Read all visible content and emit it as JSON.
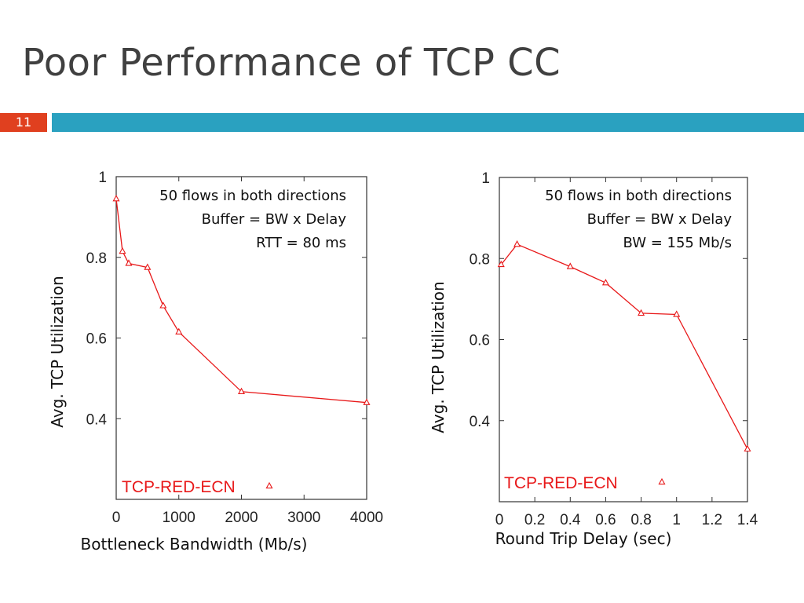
{
  "slide": {
    "title": "Poor Performance of TCP CC",
    "number": "11",
    "accent_color": "#e0401f",
    "bar_color": "#2aa1c0"
  },
  "chart_data": [
    {
      "type": "line",
      "title": "",
      "xlabel": "Bottleneck Bandwidth (Mb/s)",
      "ylabel": "Avg. TCP Utilization",
      "xlim": [
        0,
        4000
      ],
      "ylim": [
        0.2,
        1.0
      ],
      "xticks": [
        0,
        1000,
        2000,
        3000,
        4000
      ],
      "xtick_labels": [
        "0",
        "1000",
        "2000",
        "3000",
        "4000"
      ],
      "yticks": [
        0.4,
        0.6,
        0.8,
        1.0
      ],
      "ytick_labels": [
        "0.4",
        "0.6",
        "0.8",
        "1"
      ],
      "grid": false,
      "legend_position": "bottom-right",
      "annotations": [
        "50 flows in both directions",
        "Buffer = BW x Delay",
        "RTT = 80 ms"
      ],
      "series": [
        {
          "name": "TCP-RED-ECN",
          "color": "#e8191a",
          "marker": "triangle",
          "x": [
            0,
            100,
            200,
            500,
            750,
            1000,
            2000,
            4000
          ],
          "y": [
            0.945,
            0.815,
            0.785,
            0.775,
            0.68,
            0.615,
            0.467,
            0.44
          ]
        }
      ]
    },
    {
      "type": "line",
      "title": "",
      "xlabel": "Round Trip Delay (sec)",
      "ylabel": "Avg. TCP Utilization",
      "xlim": [
        0,
        1.4
      ],
      "ylim": [
        0.2,
        1.0
      ],
      "xticks": [
        0,
        0.2,
        0.4,
        0.6,
        0.8,
        1.0,
        1.2,
        1.4
      ],
      "xtick_labels": [
        "0",
        "0.2",
        "0.4",
        "0.6",
        "0.8",
        "1",
        "1.2",
        "1.4"
      ],
      "yticks": [
        0.4,
        0.6,
        0.8,
        1.0
      ],
      "ytick_labels": [
        "0.4",
        "0.6",
        "0.8",
        "1"
      ],
      "grid": false,
      "legend_position": "bottom-right",
      "annotations": [
        "50 flows in both directions",
        "Buffer = BW x Delay",
        "BW = 155 Mb/s"
      ],
      "series": [
        {
          "name": "TCP-RED-ECN",
          "color": "#e8191a",
          "marker": "triangle",
          "x": [
            0.01,
            0.1,
            0.4,
            0.6,
            0.8,
            1.0,
            1.4
          ],
          "y": [
            0.785,
            0.835,
            0.78,
            0.74,
            0.665,
            0.662,
            0.33
          ]
        }
      ]
    }
  ]
}
